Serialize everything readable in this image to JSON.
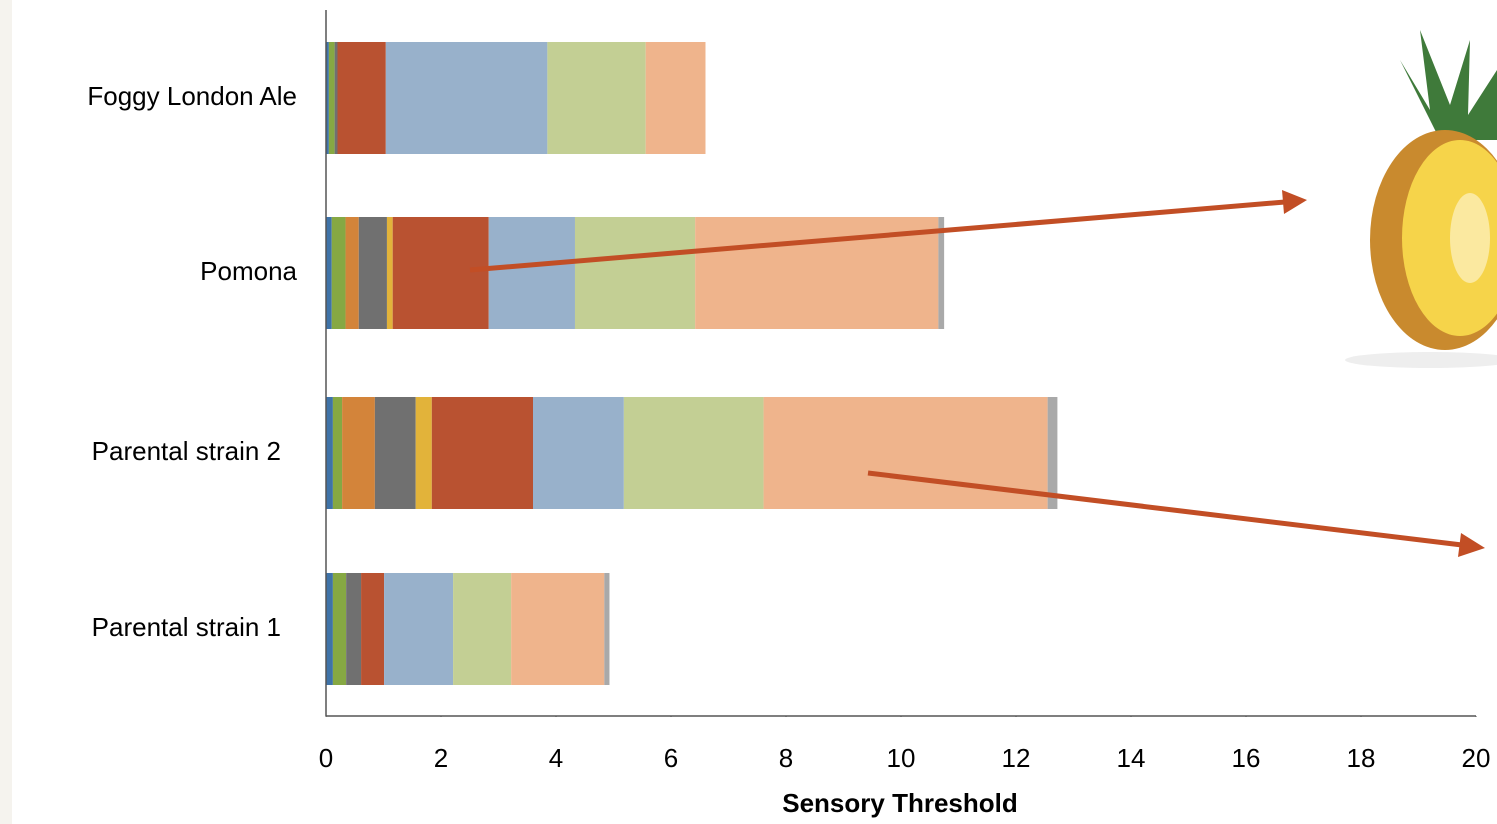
{
  "chart_data": {
    "type": "stacked-bar-horizontal",
    "categories": [
      "Foggy London Ale",
      "Pomona",
      "Parental strain 2",
      "Parental strain 1"
    ],
    "series": [
      {
        "color": "#3f73a8",
        "values": [
          0.05,
          0.1,
          0.12,
          0.12
        ]
      },
      {
        "color": "#86a843",
        "values": [
          0.1,
          0.24,
          0.16,
          0.23
        ]
      },
      {
        "color": "#d3843a",
        "values": [
          0,
          0.23,
          0.57,
          0
        ]
      },
      {
        "color": "#707070",
        "values": [
          0.05,
          0.49,
          0.71,
          0.26
        ]
      },
      {
        "color": "#e2b33a",
        "values": [
          0,
          0.1,
          0.28,
          0
        ]
      },
      {
        "color": "#b95231",
        "values": [
          0.84,
          1.67,
          1.76,
          0.4
        ]
      },
      {
        "color": "#98b1cb",
        "values": [
          2.81,
          1.5,
          1.58,
          1.2
        ]
      },
      {
        "color": "#c3cf94",
        "values": [
          1.71,
          2.09,
          2.43,
          1.01
        ]
      },
      {
        "color": "#efb48c",
        "values": [
          1.04,
          4.23,
          4.94,
          1.62
        ]
      },
      {
        "color": "#a9a9a9",
        "values": [
          0,
          0.1,
          0.17,
          0.09
        ]
      }
    ],
    "xlim": [
      0,
      20
    ],
    "xticks": [
      0,
      2,
      4,
      6,
      8,
      10,
      12,
      14,
      16,
      18,
      20
    ],
    "x_label": "Sensory Threshold"
  }
}
